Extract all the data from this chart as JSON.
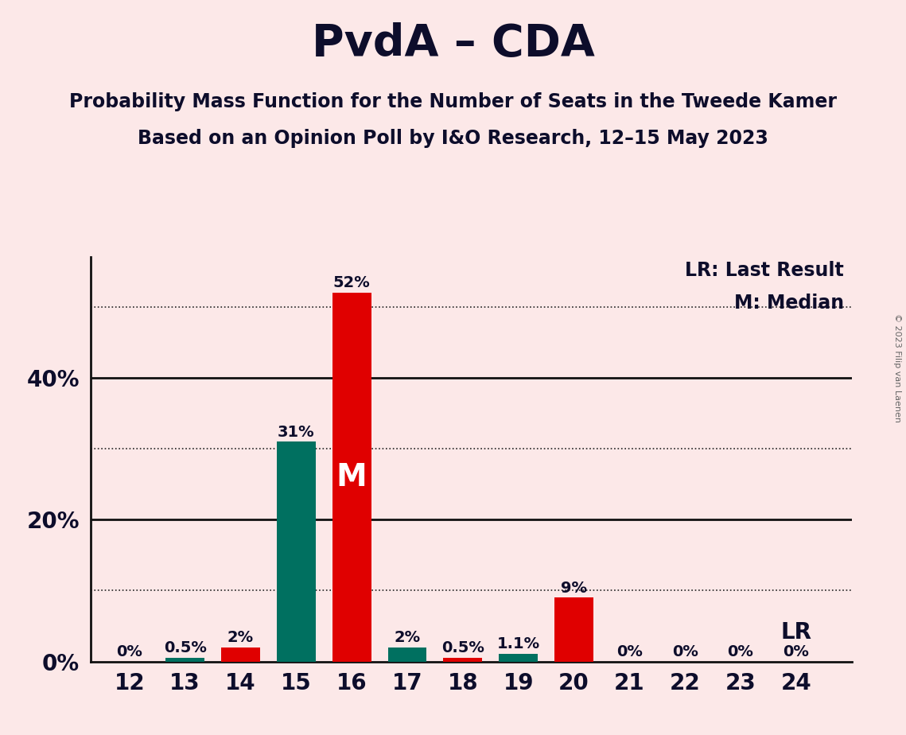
{
  "title": "PvdA – CDA",
  "subtitle1": "Probability Mass Function for the Number of Seats in the Tweede Kamer",
  "subtitle2": "Based on an Opinion Poll by I&O Research, 12–15 May 2023",
  "copyright": "© 2023 Filip van Laenen",
  "seats": [
    12,
    13,
    14,
    15,
    16,
    17,
    18,
    19,
    20,
    21,
    22,
    23,
    24
  ],
  "values": [
    0.0,
    0.5,
    2.0,
    31.0,
    52.0,
    2.0,
    0.5,
    1.1,
    9.0,
    0.0,
    0.0,
    0.0,
    0.0
  ],
  "labels": [
    "0%",
    "0.5%",
    "2%",
    "31%",
    "52%",
    "2%",
    "0.5%",
    "1.1%",
    "9%",
    "0%",
    "0%",
    "0%",
    "0%"
  ],
  "colors": [
    "#e00000",
    "#007060",
    "#e00000",
    "#007060",
    "#e00000",
    "#007060",
    "#e00000",
    "#007060",
    "#e00000",
    "#e00000",
    "#e00000",
    "#e00000",
    "#e00000"
  ],
  "median_seat": 16,
  "median_label": "M",
  "lr_seat": 24,
  "lr_label": "LR",
  "legend_lr": "LR: Last Result",
  "legend_m": "M: Median",
  "background_color": "#fce8e8",
  "ylim": [
    0,
    57
  ],
  "ytick_values": [
    0,
    20,
    40
  ],
  "ytick_labels": [
    "0%",
    "20%",
    "40%"
  ],
  "dotted_hlines": [
    10,
    30,
    50
  ],
  "solid_hlines": [
    20,
    40
  ],
  "bar_width": 0.7,
  "text_color": "#0d0d2b",
  "title_fontsize": 40,
  "subtitle_fontsize": 17,
  "tick_fontsize": 20,
  "label_fontsize": 14,
  "legend_fontsize": 17,
  "lr_fontsize": 20,
  "m_fontsize": 28
}
